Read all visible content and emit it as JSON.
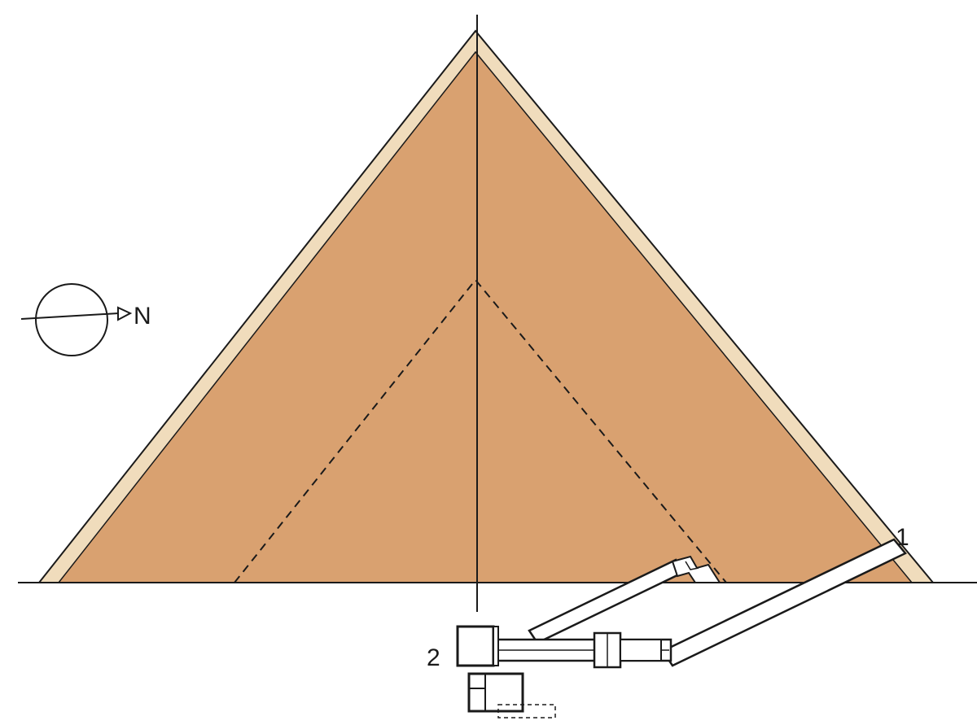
{
  "compass": {
    "north_label": "N",
    "icon": "north-arrow-compass-icon"
  },
  "labels": {
    "entrance_label": "1",
    "chamber_label": "2"
  },
  "colors": {
    "pyramid_core": "#d9a170",
    "pyramid_casing": "#f0dcbc",
    "outline": "#1a1a1a",
    "background": "#ffffff"
  }
}
